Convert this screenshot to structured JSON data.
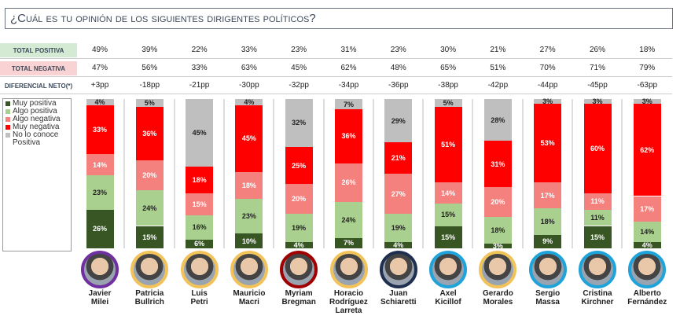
{
  "title": "¿Cuál es tu opinión de los siguientes dirigentes políticos?",
  "rows": {
    "pos": "TOTAL POSITIVA",
    "neg": "TOTAL NEGATIVA",
    "dif": "DIFERENCIAL NETO(*)"
  },
  "colors": {
    "muy_positiva": "#375623",
    "algo_positiva": "#a9d08e",
    "algo_negativa": "#f4817e",
    "muy_negativa": "#ff0000",
    "no_conoce": "#bfbfbf"
  },
  "chart_data": {
    "type": "bar",
    "stacked": true,
    "legend": [
      "Muy positiva",
      "Algo positiva",
      "Algo negativa",
      "Muy negativa",
      "No lo conoce",
      "Positiva"
    ],
    "categories": [
      "Javier Milei",
      "Patricia Bullrich",
      "Luis Petri",
      "Mauricio Macri",
      "Myriam Bregman",
      "Horacio Rodríguez Larreta",
      "Juan Schiaretti",
      "Axel Kicillof",
      "Gerardo Morales",
      "Sergio Massa",
      "Cristina Kirchner",
      "Alberto Fernández"
    ],
    "name_lines": [
      [
        "Javier",
        "Milei"
      ],
      [
        "Patricia",
        "Bullrich"
      ],
      [
        "Luis",
        "Petri"
      ],
      [
        "Mauricio",
        "Macri"
      ],
      [
        "Myriam",
        "Bregman"
      ],
      [
        "Horacio",
        "Rodríguez",
        "Larreta"
      ],
      [
        "Juan",
        "Schiaretti"
      ],
      [
        "Axel",
        "Kicillof"
      ],
      [
        "Gerardo",
        "Morales"
      ],
      [
        "Sergio",
        "Massa"
      ],
      [
        "Cristina",
        "Kirchner"
      ],
      [
        "Alberto",
        "Fernández"
      ]
    ],
    "ring_colors": [
      "#7030a0",
      "#f2c35a",
      "#f2c35a",
      "#f2c35a",
      "#a00000",
      "#f2c35a",
      "#1f2f4f",
      "#1fa3d8",
      "#f2c35a",
      "#1fa3d8",
      "#1fa3d8",
      "#1fa3d8"
    ],
    "series": [
      {
        "name": "Muy positiva",
        "values": [
          26,
          15,
          6,
          10,
          4,
          7,
          4,
          15,
          3,
          9,
          15,
          4
        ]
      },
      {
        "name": "Algo positiva",
        "values": [
          23,
          24,
          16,
          23,
          19,
          24,
          19,
          15,
          18,
          18,
          11,
          14
        ]
      },
      {
        "name": "Algo negativa",
        "values": [
          14,
          20,
          15,
          18,
          20,
          26,
          27,
          14,
          20,
          17,
          11,
          17
        ]
      },
      {
        "name": "Muy negativa",
        "values": [
          33,
          36,
          18,
          45,
          25,
          36,
          21,
          51,
          31,
          53,
          60,
          62
        ]
      },
      {
        "name": "No lo conoce",
        "values": [
          4,
          5,
          45,
          4,
          32,
          7,
          29,
          5,
          28,
          3,
          3,
          3
        ]
      }
    ],
    "total_positiva": [
      "49%",
      "39%",
      "22%",
      "33%",
      "23%",
      "31%",
      "23%",
      "30%",
      "21%",
      "27%",
      "26%",
      "18%"
    ],
    "total_negativa": [
      "47%",
      "56%",
      "33%",
      "63%",
      "45%",
      "62%",
      "48%",
      "65%",
      "51%",
      "70%",
      "71%",
      "79%"
    ],
    "diferencial": [
      "+3pp",
      "-18pp",
      "-21pp",
      "-30pp",
      "-32pp",
      "-34pp",
      "-36pp",
      "-38pp",
      "-42pp",
      "-44pp",
      "-45pp",
      "-63pp"
    ]
  }
}
